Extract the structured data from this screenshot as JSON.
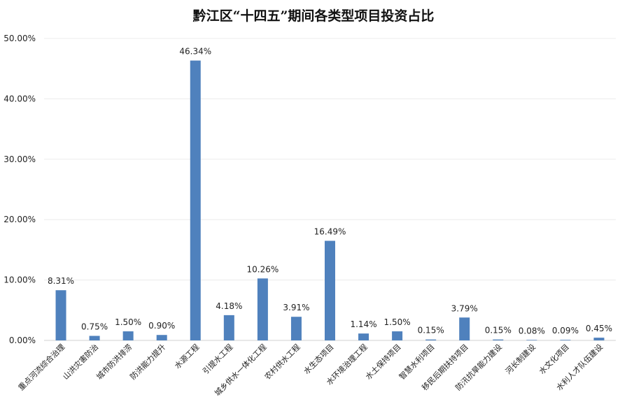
{
  "chart_data": {
    "type": "bar",
    "title": "黔江区“十四五”期间各类型项目投资占比",
    "xlabel": "",
    "ylabel": "",
    "ylim": [
      0,
      50
    ],
    "yticks": [
      "0.00%",
      "10.00%",
      "20.00%",
      "30.00%",
      "40.00%",
      "50.00%"
    ],
    "grid": true,
    "legend": "none",
    "bar_color": "#4f81bd",
    "categories": [
      "重点河流综合治理",
      "山洪灾害防治",
      "城市防洪排涝",
      "防洪能力提升",
      "水源工程",
      "引提水工程",
      "城乡供水一体化工程",
      "农村供水工程",
      "水生态项目",
      "水环境治理工程",
      "水土保持项目",
      "智慧水利项目",
      "移民后期扶持项目",
      "防汛抗旱能力建设",
      "河长制建设",
      "水文化项目",
      "水利人才队伍建设"
    ],
    "values": [
      8.31,
      0.75,
      1.5,
      0.9,
      46.34,
      4.18,
      10.26,
      3.91,
      16.49,
      1.14,
      1.5,
      0.15,
      3.79,
      0.15,
      0.08,
      0.09,
      0.45
    ],
    "data_labels": [
      "8.31%",
      "0.75%",
      "1.50%",
      "0.90%",
      "46.34%",
      "4.18%",
      "10.26%",
      "3.91%",
      "16.49%",
      "1.14%",
      "1.50%",
      "0.15%",
      "3.79%",
      "0.15%",
      "0.08%",
      "0.09%",
      "0.45%"
    ]
  }
}
